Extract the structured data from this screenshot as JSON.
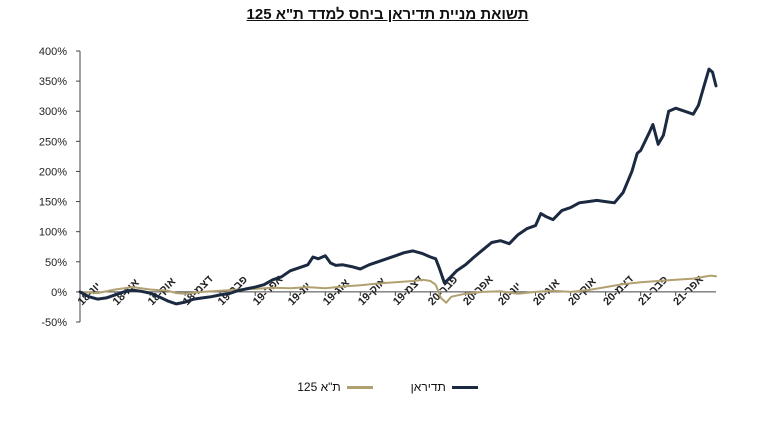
{
  "chart_data": {
    "type": "line",
    "title": "תשואת מניית תדיראן ביחס למדד ת\"א 125",
    "ylim": [
      -50,
      400
    ],
    "yticks": [
      -50,
      0,
      50,
      100,
      150,
      200,
      250,
      300,
      350,
      400
    ],
    "ytick_labels": [
      "-50%",
      "0%",
      "50%",
      "100%",
      "150%",
      "200%",
      "250%",
      "300%",
      "350%",
      "400%"
    ],
    "x_tick_labels": [
      "יונ-18",
      "אוג-18",
      "אוק-18",
      "דצמ-18",
      "פבר-19",
      "אפר-19",
      "יונ-19",
      "אוג-19",
      "אוק-19",
      "דצמ-19",
      "פבר-20",
      "אפר-20",
      "יונ-20",
      "אוג-20",
      "אוק-20",
      "דצמ-20",
      "פבר-21",
      "אפר-21"
    ],
    "x_tick_months": [
      0,
      2,
      4,
      6,
      8,
      10,
      12,
      14,
      16,
      18,
      20,
      22,
      24,
      26,
      28,
      30,
      32,
      34
    ],
    "x_range_months": [
      0,
      36.3
    ],
    "legend_position": "bottom",
    "grid": false,
    "series": [
      {
        "name": "תדיראן",
        "color": "#1b2a40",
        "points": [
          [
            0,
            0
          ],
          [
            0.5,
            -8
          ],
          [
            1,
            -12
          ],
          [
            1.5,
            -10
          ],
          [
            2,
            -5
          ],
          [
            2.5,
            0
          ],
          [
            3,
            3
          ],
          [
            3.5,
            1
          ],
          [
            4,
            -2
          ],
          [
            4.5,
            -8
          ],
          [
            5,
            -15
          ],
          [
            5.5,
            -20
          ],
          [
            6,
            -17
          ],
          [
            6.5,
            -12
          ],
          [
            7,
            -10
          ],
          [
            7.5,
            -8
          ],
          [
            8,
            -5
          ],
          [
            8.5,
            -3
          ],
          [
            9,
            2
          ],
          [
            9.5,
            5
          ],
          [
            10,
            8
          ],
          [
            10.5,
            12
          ],
          [
            11,
            20
          ],
          [
            11.5,
            25
          ],
          [
            12,
            35
          ],
          [
            12.5,
            40
          ],
          [
            13,
            45
          ],
          [
            13.3,
            58
          ],
          [
            13.6,
            55
          ],
          [
            14,
            60
          ],
          [
            14.3,
            48
          ],
          [
            14.6,
            44
          ],
          [
            15,
            45
          ],
          [
            15.5,
            42
          ],
          [
            16,
            38
          ],
          [
            16.5,
            45
          ],
          [
            17,
            50
          ],
          [
            17.5,
            55
          ],
          [
            18,
            60
          ],
          [
            18.5,
            65
          ],
          [
            19,
            68
          ],
          [
            19.5,
            64
          ],
          [
            20,
            58
          ],
          [
            20.3,
            55
          ],
          [
            20.5,
            40
          ],
          [
            20.8,
            15
          ],
          [
            21,
            20
          ],
          [
            21.5,
            35
          ],
          [
            22,
            45
          ],
          [
            22.5,
            58
          ],
          [
            23,
            70
          ],
          [
            23.5,
            82
          ],
          [
            24,
            85
          ],
          [
            24.5,
            80
          ],
          [
            25,
            95
          ],
          [
            25.5,
            105
          ],
          [
            26,
            110
          ],
          [
            26.3,
            130
          ],
          [
            26.6,
            125
          ],
          [
            27,
            120
          ],
          [
            27.5,
            135
          ],
          [
            28,
            140
          ],
          [
            28.5,
            148
          ],
          [
            29,
            150
          ],
          [
            29.5,
            152
          ],
          [
            30,
            150
          ],
          [
            30.5,
            148
          ],
          [
            31,
            165
          ],
          [
            31.5,
            200
          ],
          [
            31.8,
            230
          ],
          [
            32,
            235
          ],
          [
            32.5,
            265
          ],
          [
            32.7,
            278
          ],
          [
            33,
            245
          ],
          [
            33.3,
            260
          ],
          [
            33.6,
            300
          ],
          [
            34,
            305
          ],
          [
            34.5,
            300
          ],
          [
            35,
            295
          ],
          [
            35.3,
            310
          ],
          [
            35.6,
            340
          ],
          [
            35.9,
            370
          ],
          [
            36.1,
            365
          ],
          [
            36.3,
            342
          ]
        ]
      },
      {
        "name": "ת\"א 125",
        "color": "#b2a170",
        "points": [
          [
            0,
            0
          ],
          [
            1,
            -2
          ],
          [
            2,
            4
          ],
          [
            3,
            8
          ],
          [
            4,
            4
          ],
          [
            5,
            2
          ],
          [
            5.5,
            -2
          ],
          [
            6,
            -3
          ],
          [
            7,
            0
          ],
          [
            8,
            2
          ],
          [
            9,
            4
          ],
          [
            10,
            5
          ],
          [
            11,
            7
          ],
          [
            12,
            6
          ],
          [
            13,
            8
          ],
          [
            14,
            6
          ],
          [
            15,
            9
          ],
          [
            16,
            11
          ],
          [
            17,
            14
          ],
          [
            18,
            16
          ],
          [
            19,
            18
          ],
          [
            19.6,
            20
          ],
          [
            20,
            18
          ],
          [
            20.3,
            12
          ],
          [
            20.6,
            -10
          ],
          [
            20.9,
            -18
          ],
          [
            21.2,
            -8
          ],
          [
            22,
            -3
          ],
          [
            23,
            0
          ],
          [
            24,
            1
          ],
          [
            25,
            -3
          ],
          [
            26,
            0
          ],
          [
            27,
            2
          ],
          [
            28,
            0
          ],
          [
            29,
            3
          ],
          [
            30,
            8
          ],
          [
            31,
            13
          ],
          [
            32,
            16
          ],
          [
            33,
            18
          ],
          [
            34,
            20
          ],
          [
            35,
            22
          ],
          [
            36,
            27
          ],
          [
            36.3,
            26
          ]
        ]
      }
    ]
  }
}
